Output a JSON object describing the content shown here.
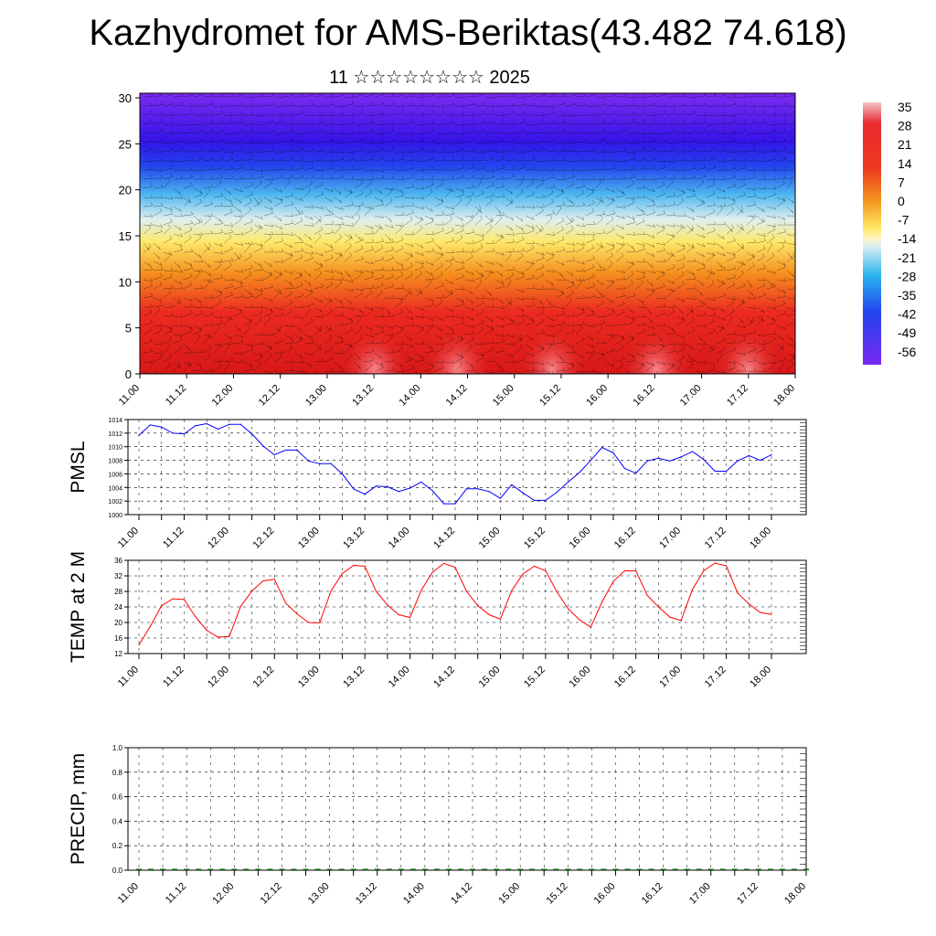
{
  "title": "Kazhydromet for AMS-Beriktas(43.482 74.618)",
  "subtitle": "11 ☆☆☆☆☆☆☆☆ 2025",
  "chart_data": [
    {
      "type": "heatmap",
      "title": "",
      "x_ticks": [
        "11.00",
        "11.12",
        "12.00",
        "12.12",
        "13.00",
        "13.12",
        "14.00",
        "14.12",
        "15.00",
        "15.12",
        "16.00",
        "16.12",
        "17.00",
        "17.12",
        "18.00"
      ],
      "y_ticks": [
        0,
        5,
        10,
        15,
        20,
        25,
        30
      ],
      "ylim": [
        0,
        30.5
      ],
      "colorbar_labels": [
        "35",
        "28",
        "21",
        "14",
        "7",
        "0",
        "-7",
        "-14",
        "-21",
        "-28",
        "-35",
        "-42",
        "-49",
        "-56"
      ],
      "colors": {
        "warm": "#e8202a",
        "mid": "#ffe866",
        "cold": "#2b10e6",
        "top": "#7b2cf0"
      }
    },
    {
      "type": "line",
      "ylabel": "PMSL",
      "ylim": [
        1000,
        1014
      ],
      "y_ticks": [
        "1000",
        "1002",
        "1004",
        "1006",
        "1008",
        "1010",
        "1012",
        "1014"
      ],
      "x_ticks": [
        "11.00",
        "11.12",
        "12.00",
        "12.12",
        "13.00",
        "13.12",
        "14.00",
        "14.12",
        "15.00",
        "15.12",
        "16.00",
        "16.12",
        "17.00",
        "17.12",
        "18.00"
      ],
      "series": [
        {
          "color": "#0000ff",
          "values": [
            1011.7,
            1013.2,
            1012.9,
            1012.0,
            1011.9,
            1013.1,
            1013.4,
            1012.6,
            1013.3,
            1013.3,
            1011.9,
            1010.1,
            1008.8,
            1009.5,
            1009.5,
            1007.9,
            1007.5,
            1007.5,
            1006.0,
            1003.8,
            1003.0,
            1004.2,
            1004.1,
            1003.4,
            1003.9,
            1004.8,
            1003.5,
            1001.6,
            1001.6,
            1003.8,
            1003.8,
            1003.4,
            1002.4,
            1004.4,
            1003.2,
            1002.1,
            1002.1,
            1003.3,
            1004.8,
            1006.2,
            1008.0,
            1009.9,
            1009.1,
            1006.8,
            1006.1,
            1007.9,
            1008.3,
            1007.9,
            1008.5,
            1009.3,
            1008.1,
            1006.4,
            1006.4,
            1007.9,
            1008.7,
            1008.0,
            1008.8
          ]
        }
      ]
    },
    {
      "type": "line",
      "ylabel": "TEMP at 2 M",
      "ylim": [
        12,
        36
      ],
      "y_ticks": [
        "12",
        "16",
        "20",
        "24",
        "28",
        "32",
        "36"
      ],
      "x_ticks": [
        "11.00",
        "11.12",
        "12.00",
        "12.12",
        "13.00",
        "13.12",
        "14.00",
        "14.12",
        "15.00",
        "15.12",
        "16.00",
        "16.12",
        "17.00",
        "17.12",
        "18.00"
      ],
      "series": [
        {
          "color": "#ff0000",
          "values": [
            14.2,
            19.0,
            24.3,
            26.1,
            25.9,
            21.5,
            18.0,
            16.2,
            16.4,
            24.1,
            28.1,
            30.7,
            31.1,
            25.0,
            22.2,
            20.0,
            19.9,
            28.1,
            32.6,
            34.7,
            34.5,
            28.0,
            24.5,
            22.0,
            21.3,
            28.3,
            33.0,
            35.2,
            34.2,
            28.0,
            24.3,
            22.0,
            20.9,
            28.2,
            32.5,
            34.5,
            33.3,
            27.9,
            23.5,
            20.7,
            18.8,
            25.3,
            30.6,
            33.3,
            33.3,
            27.0,
            24.0,
            21.4,
            20.5,
            28.5,
            33.3,
            35.3,
            34.6,
            27.6,
            24.8,
            22.6,
            22.1
          ]
        }
      ]
    },
    {
      "type": "bar",
      "ylabel": "PRECIP, mm",
      "ylim": [
        0,
        1
      ],
      "y_ticks": [
        "0.0",
        "0.2",
        "0.4",
        "0.6",
        "0.8",
        "1.0"
      ],
      "x_ticks": [
        "11.00",
        "11.12",
        "12.00",
        "12.12",
        "13.00",
        "13.12",
        "14.00",
        "14.12",
        "15.00",
        "15.12",
        "16.00",
        "16.12",
        "17.00",
        "17.12",
        "18.00"
      ],
      "series": [
        {
          "color": "#006400",
          "values": [
            0,
            0,
            0,
            0,
            0,
            0,
            0,
            0,
            0,
            0,
            0,
            0,
            0,
            0,
            0,
            0,
            0,
            0,
            0,
            0,
            0,
            0,
            0,
            0,
            0,
            0,
            0,
            0,
            0,
            0,
            0,
            0,
            0,
            0,
            0,
            0,
            0,
            0,
            0,
            0,
            0,
            0,
            0,
            0,
            0,
            0,
            0,
            0,
            0,
            0,
            0,
            0,
            0,
            0,
            0,
            0,
            0
          ]
        }
      ]
    }
  ]
}
